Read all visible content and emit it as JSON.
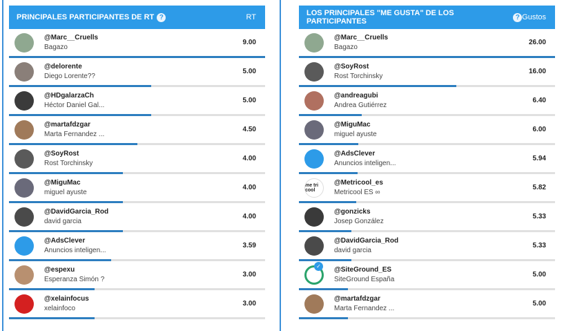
{
  "left": {
    "title": "PRINCIPALES PARTICIPANTES DE RT",
    "help": "?",
    "metric_label": "RT",
    "rows": [
      {
        "handle": "@Marc__Cruells",
        "name": "Bagazo",
        "value": "9.00",
        "fraction": 1.0,
        "avatar_color": "#8fa890",
        "avatar_text": ""
      },
      {
        "handle": "@delorente",
        "name": "Diego Lorente??",
        "value": "5.00",
        "fraction": 0.555,
        "avatar_color": "#8a7f79",
        "avatar_text": ""
      },
      {
        "handle": "@HDgalarzaCh",
        "name": "Héctor Daniel Gal...",
        "value": "5.00",
        "fraction": 0.555,
        "avatar_color": "#3b3b3b",
        "avatar_text": ""
      },
      {
        "handle": "@martafdzgar",
        "name": "Marta Fernandez ...",
        "value": "4.50",
        "fraction": 0.5,
        "avatar_color": "#a07a5a",
        "avatar_text": ""
      },
      {
        "handle": "@SoyRost",
        "name": "Rost Torchinsky",
        "value": "4.00",
        "fraction": 0.444,
        "avatar_color": "#5a5a5a",
        "avatar_text": ""
      },
      {
        "handle": "@MiguMac",
        "name": "miguel ayuste",
        "value": "4.00",
        "fraction": 0.444,
        "avatar_color": "#6a6a7a",
        "avatar_text": ""
      },
      {
        "handle": "@DavidGarcia_Rod",
        "name": "david garcia",
        "value": "4.00",
        "fraction": 0.444,
        "avatar_color": "#4a4a4a",
        "avatar_text": ""
      },
      {
        "handle": "@AdsClever",
        "name": "Anuncios inteligen...",
        "value": "3.59",
        "fraction": 0.399,
        "avatar_color": "#2d9be8",
        "avatar_text": ""
      },
      {
        "handle": "@espexu",
        "name": "Esperanza Simón ?",
        "value": "3.00",
        "fraction": 0.333,
        "avatar_color": "#b89070",
        "avatar_text": ""
      },
      {
        "handle": "@xelainfocus",
        "name": "xelainfoco",
        "value": "3.00",
        "fraction": 0.333,
        "avatar_color": "#d42020",
        "avatar_text": ""
      }
    ]
  },
  "right": {
    "title": "LOS PRINCIPALES \"ME GUSTA\" DE LOS PARTICIPANTES",
    "help": "?",
    "metric_label": "Gustos",
    "rows": [
      {
        "handle": "@Marc__Cruells",
        "name": "Bagazo",
        "value": "26.00",
        "fraction": 1.0,
        "avatar_color": "#8fa890",
        "avatar_text": ""
      },
      {
        "handle": "@SoyRost",
        "name": "Rost Torchinsky",
        "value": "16.00",
        "fraction": 0.615,
        "avatar_color": "#5a5a5a",
        "avatar_text": ""
      },
      {
        "handle": "@andreagubi",
        "name": "Andrea Gutiérrez",
        "value": "6.40",
        "fraction": 0.246,
        "avatar_color": "#b07060",
        "avatar_text": ""
      },
      {
        "handle": "@MiguMac",
        "name": "miguel ayuste",
        "value": "6.00",
        "fraction": 0.231,
        "avatar_color": "#6a6a7a",
        "avatar_text": ""
      },
      {
        "handle": "@AdsClever",
        "name": "Anuncios inteligen...",
        "value": "5.94",
        "fraction": 0.228,
        "avatar_color": "#2d9be8",
        "avatar_text": ""
      },
      {
        "handle": "@Metricool_es",
        "name": "Metricool ES ∞",
        "value": "5.82",
        "fraction": 0.224,
        "avatar_color": "#ffffff",
        "avatar_text": "me tri cool"
      },
      {
        "handle": "@gonzicks",
        "name": "Josep González",
        "value": "5.33",
        "fraction": 0.205,
        "avatar_color": "#3a3a3a",
        "avatar_text": ""
      },
      {
        "handle": "@DavidGarcia_Rod",
        "name": "david garcia",
        "value": "5.33",
        "fraction": 0.205,
        "avatar_color": "#4a4a4a",
        "avatar_text": ""
      },
      {
        "handle": "@SiteGround_ES",
        "name": "SiteGround España",
        "value": "5.00",
        "fraction": 0.192,
        "avatar_color": "#ffffff",
        "avatar_text": "",
        "verified": true
      },
      {
        "handle": "@martafdzgar",
        "name": "Marta Fernandez ...",
        "value": "5.00",
        "fraction": 0.192,
        "avatar_color": "#a07a5a",
        "avatar_text": ""
      }
    ]
  }
}
